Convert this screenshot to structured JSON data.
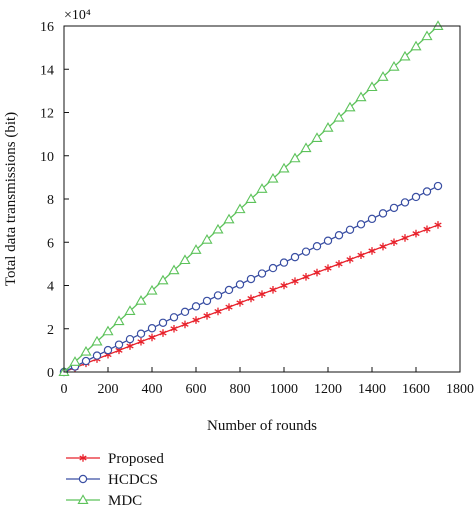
{
  "chart_data": {
    "type": "line",
    "title": "",
    "xlabel": "Number of rounds",
    "ylabel": "Total data transmissions (bit)",
    "y_multiplier_label": "×10⁴",
    "y_unit_scale": 10000,
    "xlim": [
      0,
      1800
    ],
    "ylim": [
      0,
      16
    ],
    "x_ticks": [
      0,
      200,
      400,
      600,
      800,
      1000,
      1200,
      1400,
      1600,
      1800
    ],
    "y_ticks": [
      0,
      2,
      4,
      6,
      8,
      10,
      12,
      14,
      16
    ],
    "grid": false,
    "legend_position": "bottom-left, below plot",
    "x_range": [
      0,
      1700
    ],
    "marker_step": 50,
    "series": [
      {
        "name": "Proposed",
        "start": [
          0,
          0
        ],
        "end": [
          1700,
          6.8
        ],
        "color": "#e8202a",
        "marker": "star"
      },
      {
        "name": "HCDCS",
        "start": [
          0,
          0
        ],
        "end": [
          1700,
          8.6
        ],
        "color": "#3a4fa3",
        "marker": "circle"
      },
      {
        "name": "MDC",
        "start": [
          0,
          0
        ],
        "end": [
          1700,
          16.0
        ],
        "color": "#5cc25a",
        "marker": "triangle"
      }
    ]
  }
}
